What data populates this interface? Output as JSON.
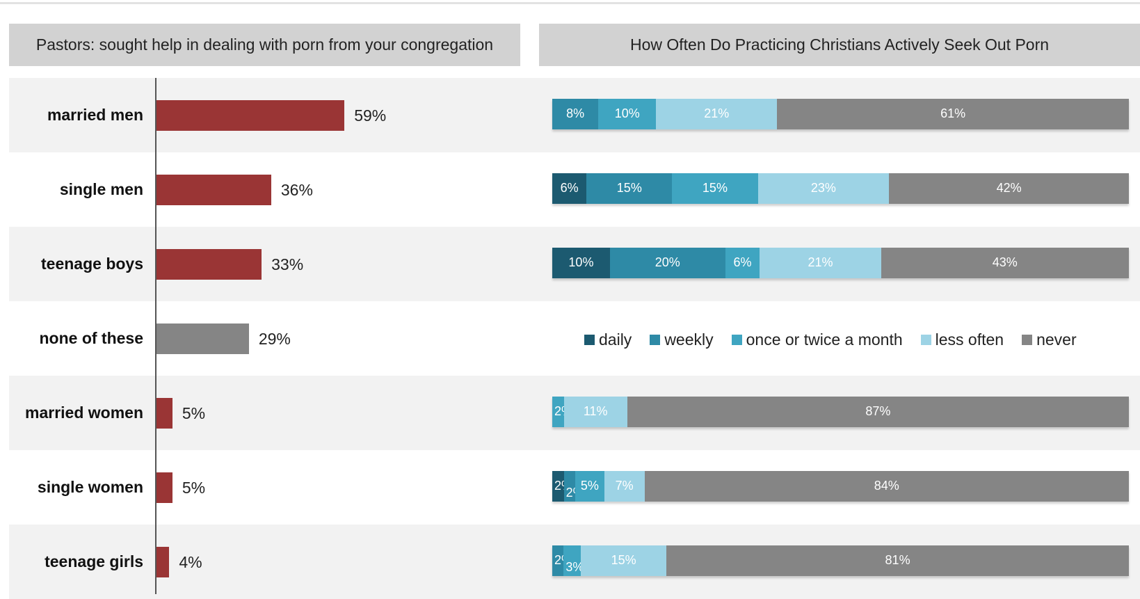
{
  "left_header": "Pastors: sought help in dealing with porn from your congregation",
  "right_header": "How Often Do Practicing Christians Actively Seek Out Porn",
  "chart_data": [
    {
      "type": "bar",
      "orientation": "horizontal",
      "title": "Pastors: sought help in dealing with porn from your congregation",
      "categories": [
        "married men",
        "single men",
        "teenage boys",
        "none of these",
        "married women",
        "single women",
        "teenage girls"
      ],
      "values": [
        59,
        36,
        33,
        29,
        5,
        5,
        4
      ],
      "labels": [
        "59%",
        "36%",
        "33%",
        "29%",
        "5%",
        "5%",
        "4%"
      ],
      "colors": [
        "#9a3535",
        "#9a3535",
        "#9a3535",
        "#858585",
        "#9a3535",
        "#9a3535",
        "#9a3535"
      ],
      "xlim": [
        0,
        100
      ],
      "grid": false
    },
    {
      "type": "bar",
      "orientation": "horizontal",
      "stacked": true,
      "title": "How Often Do Practicing Christians Actively Seek Out Porn",
      "categories": [
        "married men",
        "single men",
        "teenage boys",
        "married women",
        "single women",
        "teenage girls"
      ],
      "legend_position": "middle",
      "series": [
        {
          "name": "daily",
          "color": "#1c5a70",
          "values": [
            0,
            6,
            10,
            0,
            2,
            0
          ],
          "labels": [
            "",
            "6%",
            "10%",
            "",
            "2%",
            ""
          ]
        },
        {
          "name": "weekly",
          "color": "#2e8aa6",
          "values": [
            8,
            15,
            20,
            0,
            2,
            2
          ],
          "labels": [
            "8%",
            "15%",
            "20%",
            "",
            "2%",
            "2%"
          ]
        },
        {
          "name": "once or twice a month",
          "color": "#3fa5c1",
          "values": [
            10,
            15,
            6,
            2,
            5,
            3
          ],
          "labels": [
            "10%",
            "15%",
            "6%",
            "2%",
            "5%",
            "3%"
          ]
        },
        {
          "name": "less often",
          "color": "#9dd3e5",
          "values": [
            21,
            23,
            21,
            11,
            7,
            15
          ],
          "labels": [
            "21%",
            "23%",
            "21%",
            "11%",
            "7%",
            "15%"
          ]
        },
        {
          "name": "never",
          "color": "#858585",
          "values": [
            61,
            42,
            43,
            87,
            84,
            81
          ],
          "labels": [
            "61%",
            "42%",
            "43%",
            "87%",
            "84%",
            "81%"
          ]
        }
      ]
    }
  ]
}
